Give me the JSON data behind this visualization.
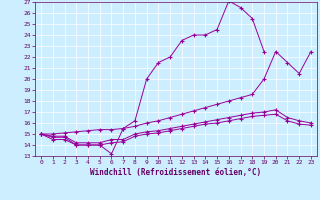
{
  "xlabel": "Windchill (Refroidissement éolien,°C)",
  "bg_color": "#cceeff",
  "line_color": "#990099",
  "grid_color": "#ffffff",
  "xlim": [
    -0.5,
    23.5
  ],
  "ylim": [
    13,
    27
  ],
  "xticks": [
    0,
    1,
    2,
    3,
    4,
    5,
    6,
    7,
    8,
    9,
    10,
    11,
    12,
    13,
    14,
    15,
    16,
    17,
    18,
    19,
    20,
    21,
    22,
    23
  ],
  "yticks": [
    13,
    14,
    15,
    16,
    17,
    18,
    19,
    20,
    21,
    22,
    23,
    24,
    25,
    26,
    27
  ],
  "lines": [
    {
      "x": [
        0,
        1,
        2,
        3,
        4,
        5,
        6,
        7,
        8,
        9,
        10,
        11,
        12,
        13,
        14,
        15,
        16,
        17,
        18,
        19
      ],
      "y": [
        15,
        14.5,
        14.5,
        14.0,
        14.0,
        14.0,
        13.2,
        15.5,
        16.2,
        20.0,
        21.5,
        22.0,
        23.5,
        24.0,
        24.0,
        24.5,
        27.1,
        26.5,
        25.5,
        22.5
      ]
    },
    {
      "x": [
        0,
        1,
        2,
        3,
        4,
        5,
        6,
        7,
        8,
        9,
        10,
        11,
        12,
        13,
        14,
        15,
        16,
        17,
        18,
        19,
        20,
        21,
        22,
        23
      ],
      "y": [
        15,
        15.0,
        15.1,
        15.2,
        15.3,
        15.4,
        15.4,
        15.5,
        15.7,
        16.0,
        16.2,
        16.5,
        16.8,
        17.1,
        17.4,
        17.7,
        18.0,
        18.3,
        18.6,
        20.0,
        22.5,
        21.5,
        20.5,
        22.5
      ]
    },
    {
      "x": [
        0,
        1,
        2,
        3,
        4,
        5,
        6,
        7,
        8,
        9,
        10,
        11,
        12,
        13,
        14,
        15,
        16,
        17,
        18,
        19,
        20,
        21,
        22,
        23
      ],
      "y": [
        15,
        14.8,
        14.8,
        14.2,
        14.2,
        14.2,
        14.5,
        14.5,
        15.0,
        15.2,
        15.3,
        15.5,
        15.7,
        15.9,
        16.1,
        16.3,
        16.5,
        16.7,
        16.9,
        17.0,
        17.2,
        16.5,
        16.2,
        16.0
      ]
    },
    {
      "x": [
        0,
        1,
        2,
        3,
        4,
        5,
        6,
        7,
        8,
        9,
        10,
        11,
        12,
        13,
        14,
        15,
        16,
        17,
        18,
        19,
        20,
        21,
        22,
        23
      ],
      "y": [
        15,
        14.7,
        14.7,
        14.0,
        14.0,
        14.0,
        14.2,
        14.3,
        14.8,
        15.0,
        15.1,
        15.3,
        15.5,
        15.7,
        15.9,
        16.0,
        16.2,
        16.4,
        16.6,
        16.7,
        16.8,
        16.2,
        15.9,
        15.8
      ]
    }
  ]
}
